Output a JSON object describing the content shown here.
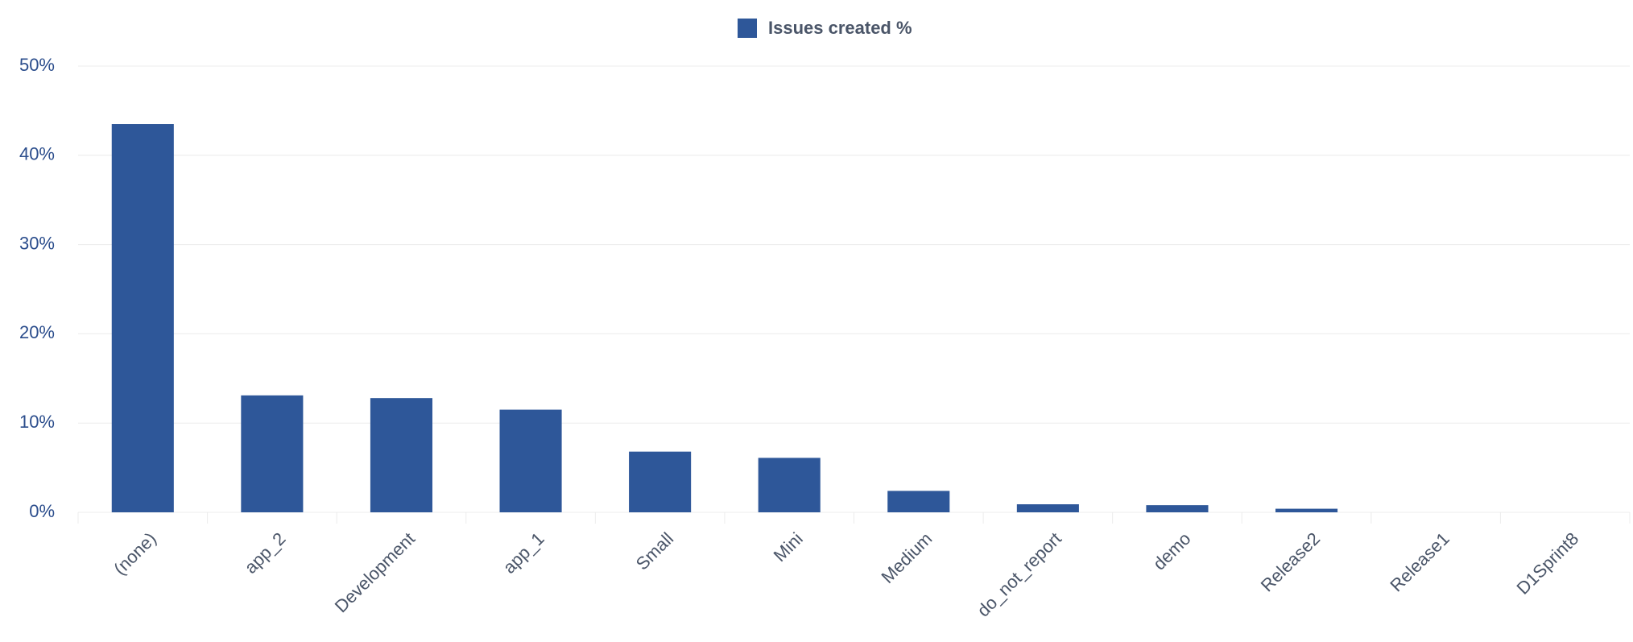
{
  "chart_data": {
    "type": "bar",
    "categories": [
      "(none)",
      "app_2",
      "Development",
      "app_1",
      "Small",
      "Mini",
      "Medium",
      "do_not_report",
      "demo",
      "Release2",
      "Release1",
      "D1Sprint8"
    ],
    "series": [
      {
        "name": "Issues created %",
        "color": "#2e5799",
        "values": [
          43.5,
          13.1,
          12.8,
          11.5,
          6.8,
          6.1,
          2.4,
          0.9,
          0.8,
          0.4,
          0,
          0
        ]
      }
    ],
    "ylim": [
      0,
      50
    ],
    "yticks": [
      {
        "value": 0,
        "label": "0%"
      },
      {
        "value": 10,
        "label": "10%"
      },
      {
        "value": 20,
        "label": "20%"
      },
      {
        "value": 30,
        "label": "30%"
      },
      {
        "value": 40,
        "label": "40%"
      },
      {
        "value": 50,
        "label": "50%"
      }
    ],
    "grid": true,
    "legend": "top"
  }
}
